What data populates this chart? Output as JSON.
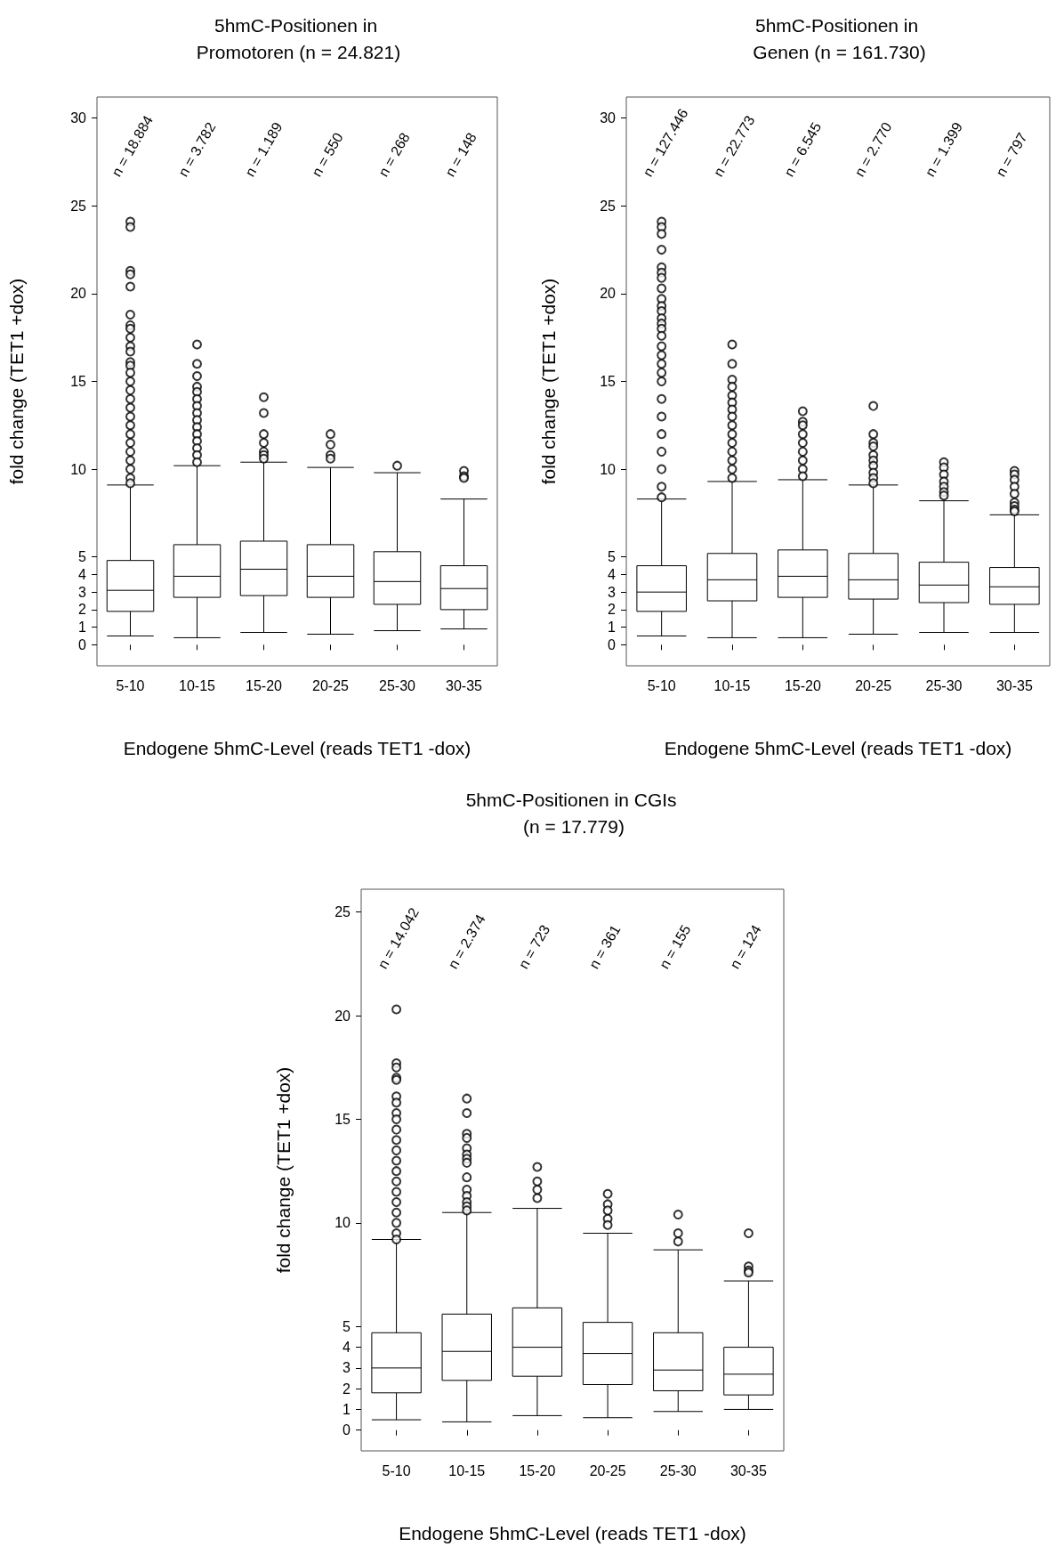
{
  "chart_data": [
    {
      "type": "box",
      "title": "5hmC-Positionen in Promotoren (n = 24.821)",
      "xlabel": "Endogene 5hmC-Level (reads TET1 -dox)",
      "ylabel": "fold change (TET1 +dox)",
      "categories": [
        "5-10",
        "10-15",
        "15-20",
        "20-25",
        "25-30",
        "30-35"
      ],
      "ylim": [
        -1.2,
        31.2
      ],
      "yticks": [
        0,
        1,
        2,
        3,
        4,
        5,
        10,
        15,
        20,
        25,
        30
      ],
      "grid": false,
      "marker": "circle",
      "boxes": [
        {
          "low": 0.5,
          "q1": 1.9,
          "median": 3.1,
          "q3": 4.8,
          "high": 9.1,
          "outliers": [
            24.1,
            23.8,
            21.3,
            21.1,
            20.4,
            18.8,
            18.2,
            18,
            17.5,
            17,
            16.7,
            16.1,
            15.9,
            15.5,
            15,
            14.5,
            14,
            13.5,
            13,
            12.5,
            12,
            11.5,
            11,
            10.5,
            10,
            9.5,
            9.2
          ]
        },
        {
          "low": 0.4,
          "q1": 2.7,
          "median": 3.9,
          "q3": 5.7,
          "high": 10.2,
          "outliers": [
            17.1,
            16,
            15.3,
            14.7,
            14.4,
            14,
            13.6,
            13.2,
            12.8,
            12.4,
            12,
            11.6,
            11.2,
            10.8,
            10.4
          ]
        },
        {
          "low": 0.7,
          "q1": 2.8,
          "median": 4.3,
          "q3": 5.9,
          "high": 10.4,
          "outliers": [
            14.1,
            13.2,
            12,
            11.5,
            11,
            10.8,
            10.6
          ]
        },
        {
          "low": 0.6,
          "q1": 2.7,
          "median": 3.9,
          "q3": 5.7,
          "high": 10.1,
          "outliers": [
            12,
            11.4,
            10.8,
            10.6
          ]
        },
        {
          "low": 0.8,
          "q1": 2.3,
          "median": 3.6,
          "q3": 5.3,
          "high": 9.8,
          "outliers": [
            10.2
          ]
        },
        {
          "low": 0.9,
          "q1": 2,
          "median": 3.2,
          "q3": 4.5,
          "high": 8.3,
          "outliers": [
            9.9,
            9.6,
            9.5
          ]
        }
      ],
      "annotations": [
        "n = 18.884",
        "n = 3.782",
        "n = 1.189",
        "n = 550",
        "n = 268",
        "n = 148"
      ]
    },
    {
      "type": "box",
      "title": "5hmC-Positionen in Genen (n = 161.730)",
      "xlabel": "Endogene 5hmC-Level (reads TET1 -dox)",
      "ylabel": "fold change (TET1 +dox)",
      "categories": [
        "5-10",
        "10-15",
        "15-20",
        "20-25",
        "25-30",
        "30-35"
      ],
      "ylim": [
        -1.2,
        31.2
      ],
      "yticks": [
        0,
        1,
        2,
        3,
        4,
        5,
        10,
        15,
        20,
        25,
        30
      ],
      "grid": false,
      "marker": "circle",
      "boxes": [
        {
          "low": 0.5,
          "q1": 1.9,
          "median": 3,
          "q3": 4.5,
          "high": 8.3,
          "outliers": [
            24.1,
            23.8,
            23.4,
            22.5,
            21.5,
            21.2,
            20.9,
            20.3,
            19.7,
            19.3,
            19,
            18.6,
            18.3,
            18,
            17.6,
            17,
            16.5,
            16,
            15.5,
            15,
            14,
            13,
            12,
            11,
            10,
            9,
            8.4
          ]
        },
        {
          "low": 0.4,
          "q1": 2.5,
          "median": 3.7,
          "q3": 5.2,
          "high": 9.3,
          "outliers": [
            17.1,
            16,
            15.1,
            14.7,
            14.2,
            13.8,
            13.4,
            13,
            12.5,
            12,
            11.5,
            11,
            10.5,
            10,
            9.5
          ]
        },
        {
          "low": 0.4,
          "q1": 2.7,
          "median": 3.9,
          "q3": 5.4,
          "high": 9.4,
          "outliers": [
            13.3,
            12.7,
            12.5,
            12,
            11.5,
            11,
            10.5,
            10,
            9.6
          ]
        },
        {
          "low": 0.6,
          "q1": 2.6,
          "median": 3.7,
          "q3": 5.2,
          "high": 9.1,
          "outliers": [
            13.6,
            12,
            11.5,
            11.3,
            10.8,
            10.5,
            10.2,
            9.8,
            9.5,
            9.2
          ]
        },
        {
          "low": 0.7,
          "q1": 2.4,
          "median": 3.4,
          "q3": 4.7,
          "high": 8.2,
          "outliers": [
            10.4,
            10.1,
            9.7,
            9.3,
            9,
            8.7,
            8.5
          ]
        },
        {
          "low": 0.7,
          "q1": 2.3,
          "median": 3.3,
          "q3": 4.4,
          "high": 7.4,
          "outliers": [
            9.9,
            9.7,
            9.4,
            9,
            8.6,
            8.1,
            7.9,
            7.7,
            7.6
          ]
        }
      ],
      "annotations": [
        "n = 127.446",
        "n = 22.773",
        "n = 6.545",
        "n = 2.770",
        "n = 1.399",
        "n = 797"
      ]
    },
    {
      "type": "box",
      "title": "5hmC-Positionen in CGIs (n = 17.779)",
      "xlabel": "Endogene 5hmC-Level (reads TET1 -dox)",
      "ylabel": "fold change (TET1 +dox)",
      "categories": [
        "5-10",
        "10-15",
        "15-20",
        "20-25",
        "25-30",
        "30-35"
      ],
      "ylim": [
        -1,
        26.1
      ],
      "yticks": [
        0,
        1,
        2,
        3,
        4,
        5,
        10,
        15,
        20,
        25
      ],
      "grid": false,
      "marker": "circle",
      "boxes": [
        {
          "low": 0.5,
          "q1": 1.8,
          "median": 3,
          "q3": 4.7,
          "high": 9.2,
          "outliers": [
            20.3,
            17.7,
            17.5,
            17,
            16.9,
            16.1,
            15.8,
            15.3,
            15,
            14.5,
            14,
            13.5,
            13,
            12.5,
            12,
            11.5,
            11,
            10.5,
            10,
            9.5,
            9.2
          ]
        },
        {
          "low": 0.4,
          "q1": 2.4,
          "median": 3.8,
          "q3": 5.6,
          "high": 10.5,
          "outliers": [
            16,
            15.3,
            14.3,
            14.1,
            13.6,
            13.3,
            13.1,
            12.9,
            12.2,
            11.6,
            11.3,
            11,
            10.8,
            10.6
          ]
        },
        {
          "low": 0.7,
          "q1": 2.6,
          "median": 4,
          "q3": 5.9,
          "high": 10.7,
          "outliers": [
            12.7,
            12,
            11.6,
            11.2
          ]
        },
        {
          "low": 0.6,
          "q1": 2.2,
          "median": 3.7,
          "q3": 5.2,
          "high": 9.5,
          "outliers": [
            11.4,
            10.9,
            10.6,
            10.2,
            9.9
          ]
        },
        {
          "low": 0.9,
          "q1": 1.9,
          "median": 2.9,
          "q3": 4.7,
          "high": 8.7,
          "outliers": [
            10.4,
            9.5,
            9.1
          ]
        },
        {
          "low": 1,
          "q1": 1.7,
          "median": 2.7,
          "q3": 4,
          "high": 7.2,
          "outliers": [
            9.5,
            7.9,
            7.7,
            7.6
          ]
        }
      ],
      "annotations": [
        "n = 14.042",
        "n = 2.374",
        "n = 723",
        "n = 361",
        "n = 155",
        "n = 124"
      ]
    }
  ]
}
